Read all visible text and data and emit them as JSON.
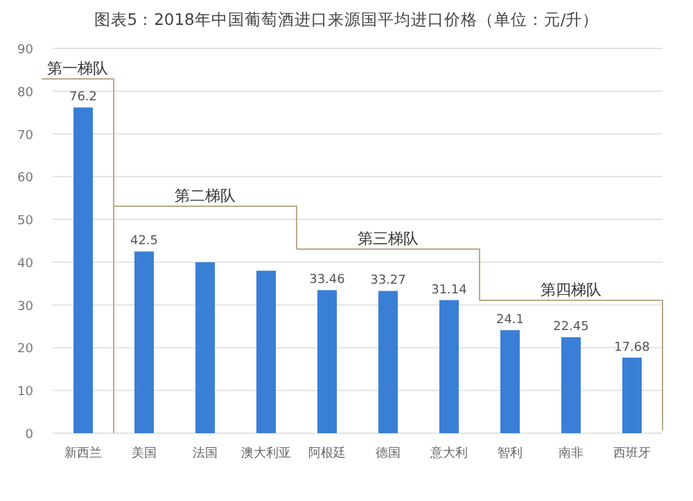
{
  "chart_data": {
    "type": "bar",
    "title": "图表5：2018年中国葡萄酒进口来源国平均进口价格（单位：元/升）",
    "categories": [
      "新西兰",
      "美国",
      "法国",
      "澳大利亚",
      "阿根廷",
      "德国",
      "意大利",
      "智利",
      "南非",
      "西班牙"
    ],
    "values": [
      76.2,
      42.5,
      40,
      38,
      33.46,
      33.27,
      31.14,
      24.1,
      22.45,
      17.68
    ],
    "value_labels": [
      "76.2",
      "42.5",
      null,
      null,
      "33.46",
      "33.27",
      "31.14",
      "24.1",
      "22.45",
      "17.68"
    ],
    "color": "#3a7fd6",
    "ylim": [
      0,
      90
    ],
    "yticks": [
      0,
      10,
      20,
      30,
      40,
      50,
      60,
      70,
      80,
      90
    ],
    "grid": "y",
    "annotations": [
      "第一梯队",
      "第二梯队",
      "第三梯队",
      "第四梯队"
    ]
  }
}
